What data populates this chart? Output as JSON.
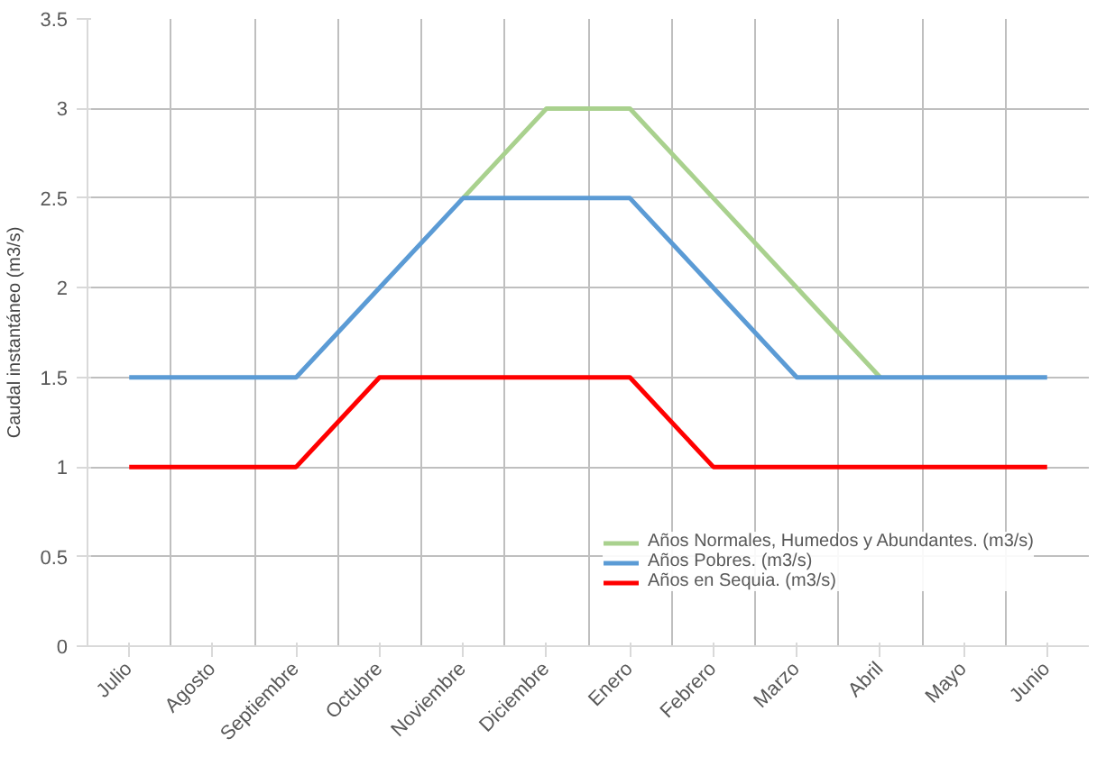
{
  "chart_data": {
    "type": "line",
    "ylabel": "Caudal instantáneo (m3/s)",
    "categories": [
      "Julio",
      "Agosto",
      "Septiembre",
      "Octubre",
      "Noviembre",
      "Diciembre",
      "Enero",
      "Febrero",
      "Marzo",
      "Abril",
      "Mayo",
      "Junio"
    ],
    "series": [
      {
        "name": "Años Normales, Humedos y Abundantes. (m3/s)",
        "color": "#a9d18e",
        "values": [
          null,
          null,
          null,
          null,
          2.5,
          3,
          3,
          2.5,
          2,
          1.5,
          null,
          null
        ]
      },
      {
        "name": "Años Pobres. (m3/s)",
        "color": "#5b9bd5",
        "values": [
          1.5,
          1.5,
          1.5,
          2,
          2.5,
          2.5,
          2.5,
          2,
          1.5,
          1.5,
          1.5,
          1.5
        ]
      },
      {
        "name": "Años en Sequia. (m3/s)",
        "color": "#ff0000",
        "values": [
          1,
          1,
          1,
          1.5,
          1.5,
          1.5,
          1.5,
          1,
          1,
          1,
          1,
          1
        ]
      }
    ],
    "ylim": [
      0,
      3.5
    ],
    "yticks": [
      0,
      0.5,
      1,
      1.5,
      2,
      2.5,
      3,
      3.5
    ],
    "grid": true,
    "legend": "bottom right",
    "marker": "none",
    "line_style": "solid"
  }
}
